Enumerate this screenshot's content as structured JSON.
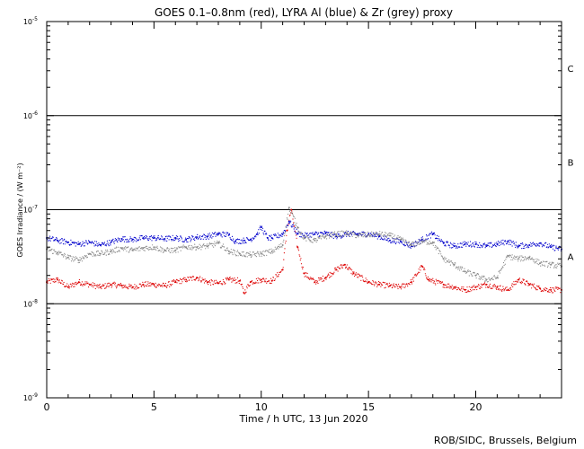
{
  "title": "GOES 0.1–0.8nm (red), LYRA Al (blue) & Zr (grey) proxy",
  "footer": "ROB/SIDC, Brussels, Belgium",
  "colors": {
    "goes": "#dd0000",
    "lyra_al": "#0000cc",
    "lyra_zr": "#888888",
    "axes": "#000000"
  },
  "chart_data": {
    "type": "scatter",
    "xlabel": "Time / h UTC, 13 Jun 2020",
    "ylabel": "GOES Irradiance / (W m⁻²)",
    "xlim": [
      0,
      24
    ],
    "ylim": [
      1e-09,
      1e-05
    ],
    "yscale": "log",
    "xticks": [
      0,
      5,
      10,
      15,
      20
    ],
    "yticks": [
      {
        "value": 1e-05,
        "mantissa": "10",
        "exp": "-5"
      },
      {
        "value": 1e-06,
        "mantissa": "10",
        "exp": "-6"
      },
      {
        "value": 1e-07,
        "mantissa": "10",
        "exp": "-7"
      },
      {
        "value": 1e-08,
        "mantissa": "10",
        "exp": "-8"
      },
      {
        "value": 1e-09,
        "mantissa": "10",
        "exp": "-9"
      }
    ],
    "reference_lines": [
      1e-06,
      1e-07,
      1e-08
    ],
    "flare_classes": [
      {
        "label": "C",
        "value": 3.2e-06
      },
      {
        "label": "B",
        "value": 3.2e-07
      },
      {
        "label": "A",
        "value": 3.2e-08
      }
    ],
    "series": [
      {
        "key": "goes",
        "x": [
          0,
          0.5,
          1,
          1.5,
          2,
          2.5,
          3,
          3.5,
          4,
          4.5,
          5,
          5.5,
          6,
          6.5,
          7,
          7.5,
          8,
          8.5,
          9,
          9.2,
          9.5,
          10,
          10.5,
          11,
          11.2,
          11.4,
          11.7,
          12,
          12.5,
          13,
          13.5,
          13.9,
          14.3,
          15,
          15.5,
          16,
          16.5,
          17,
          17.5,
          17.8,
          18.5,
          19,
          19.5,
          20,
          20.5,
          21,
          21.5,
          22,
          22.5,
          23,
          23.5,
          24
        ],
        "y": [
          1.7e-08,
          1.8e-08,
          1.5e-08,
          1.7e-08,
          1.6e-08,
          1.5e-08,
          1.6e-08,
          1.55e-08,
          1.5e-08,
          1.6e-08,
          1.6e-08,
          1.55e-08,
          1.7e-08,
          1.8e-08,
          1.9e-08,
          1.7e-08,
          1.65e-08,
          1.8e-08,
          1.75e-08,
          1.3e-08,
          1.7e-08,
          1.8e-08,
          1.75e-08,
          2.3e-08,
          6e-08,
          1e-07,
          4e-08,
          2.1e-08,
          1.7e-08,
          1.9e-08,
          2.3e-08,
          2.6e-08,
          2.1e-08,
          1.7e-08,
          1.6e-08,
          1.55e-08,
          1.5e-08,
          1.7e-08,
          2.5e-08,
          1.8e-08,
          1.6e-08,
          1.5e-08,
          1.4e-08,
          1.5e-08,
          1.6e-08,
          1.5e-08,
          1.4e-08,
          1.8e-08,
          1.6e-08,
          1.45e-08,
          1.4e-08,
          1.4e-08
        ]
      },
      {
        "key": "lyra_al",
        "x": [
          0,
          0.5,
          1,
          1.5,
          2,
          2.5,
          3,
          3.5,
          4,
          4.5,
          5,
          5.5,
          6,
          6.5,
          7,
          7.5,
          8,
          8.5,
          8.8,
          9.2,
          9.5,
          9.8,
          10,
          10.3,
          10.5,
          11,
          11.3,
          11.7,
          12,
          12.5,
          13,
          13.5,
          14,
          14.5,
          15,
          15.5,
          16,
          16.5,
          17,
          17.5,
          18,
          18.5,
          19,
          19.5,
          20,
          20.5,
          21,
          21.5,
          22,
          22.5,
          23,
          23.5,
          24
        ],
        "y": [
          5e-08,
          4.7e-08,
          4.5e-08,
          4.3e-08,
          4.5e-08,
          4.2e-08,
          4.5e-08,
          4.9e-08,
          4.8e-08,
          5e-08,
          5e-08,
          4.9e-08,
          5e-08,
          4.8e-08,
          5.1e-08,
          5.2e-08,
          5.5e-08,
          5.4e-08,
          4.6e-08,
          4.7e-08,
          4.8e-08,
          5.5e-08,
          6.5e-08,
          5e-08,
          5e-08,
          5.5e-08,
          7.5e-08,
          5.6e-08,
          5.3e-08,
          5.5e-08,
          5.6e-08,
          5.2e-08,
          5.5e-08,
          5.5e-08,
          5.5e-08,
          5.2e-08,
          4.7e-08,
          4.6e-08,
          4.1e-08,
          4.8e-08,
          5.5e-08,
          4.4e-08,
          4.1e-08,
          4.3e-08,
          4.3e-08,
          4.1e-08,
          4.3e-08,
          4.6e-08,
          4.1e-08,
          4.2e-08,
          4.4e-08,
          4e-08,
          3.8e-08
        ]
      },
      {
        "key": "lyra_zr",
        "x": [
          0,
          0.5,
          1,
          1.5,
          2,
          2.5,
          3,
          3.5,
          4,
          4.5,
          5,
          5.5,
          6,
          6.5,
          7,
          7.5,
          8,
          8.5,
          9,
          9.5,
          10,
          10.5,
          11,
          11.3,
          11.7,
          12,
          12.5,
          13,
          13.5,
          14,
          14.5,
          15,
          15.5,
          16,
          16.5,
          17,
          17.5,
          18,
          18.5,
          19,
          19.5,
          20,
          20.5,
          21,
          21.5,
          22,
          22.5,
          23,
          23.5,
          24
        ],
        "y": [
          3.8e-08,
          3.5e-08,
          3.1e-08,
          2.9e-08,
          3.4e-08,
          3.4e-08,
          3.6e-08,
          3.9e-08,
          3.7e-08,
          3.9e-08,
          4e-08,
          3.7e-08,
          3.7e-08,
          4e-08,
          4e-08,
          4.1e-08,
          4.4e-08,
          3.6e-08,
          3.4e-08,
          3.3e-08,
          3.4e-08,
          3.6e-08,
          4.2e-08,
          1.05e-07,
          6.5e-08,
          5e-08,
          4.7e-08,
          5.2e-08,
          5.5e-08,
          5.6e-08,
          5.3e-08,
          5.4e-08,
          5.5e-08,
          5.3e-08,
          4.8e-08,
          4.2e-08,
          4.6e-08,
          4.5e-08,
          3e-08,
          2.6e-08,
          2.2e-08,
          2e-08,
          1.8e-08,
          1.9e-08,
          3.2e-08,
          3e-08,
          3.1e-08,
          2.7e-08,
          2.6e-08,
          2.5e-08
        ]
      }
    ]
  }
}
